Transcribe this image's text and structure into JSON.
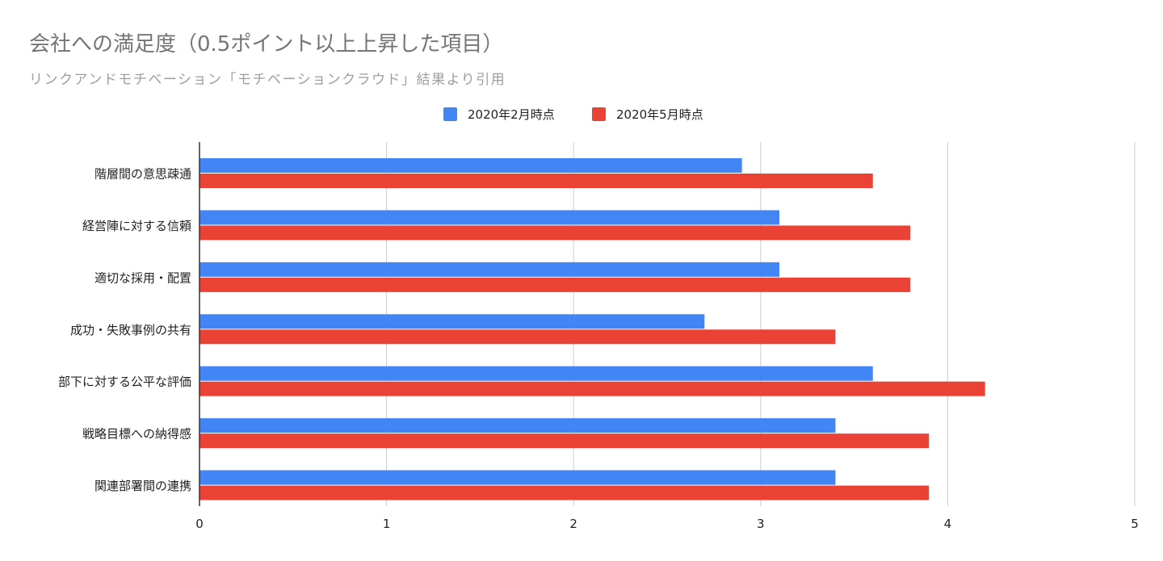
{
  "chart_data": {
    "type": "bar",
    "orientation": "horizontal",
    "title": "会社への満足度（0.5ポイント以上上昇した項目）",
    "subtitle": "リンクアンドモチベーション「モチベーションクラウド」結果より引用",
    "categories": [
      "階層間の意思疎通",
      "経営陣に対する信頼",
      "適切な採用・配置",
      "成功・失敗事例の共有",
      "部下に対する公平な評価",
      "戦略目標への納得感",
      "関連部署間の連携"
    ],
    "series": [
      {
        "name": "2020年2月時点",
        "color": "#4285f4",
        "values": [
          2.9,
          3.1,
          3.1,
          2.7,
          3.6,
          3.4,
          3.4
        ]
      },
      {
        "name": "2020年5月時点",
        "color": "#ea4335",
        "values": [
          3.6,
          3.8,
          3.8,
          3.4,
          4.2,
          3.9,
          3.9
        ]
      }
    ],
    "xlim": [
      0,
      5
    ],
    "ticks": [
      "0",
      "1",
      "2",
      "3",
      "4",
      "5"
    ],
    "grid": true,
    "legend_position": "top"
  }
}
